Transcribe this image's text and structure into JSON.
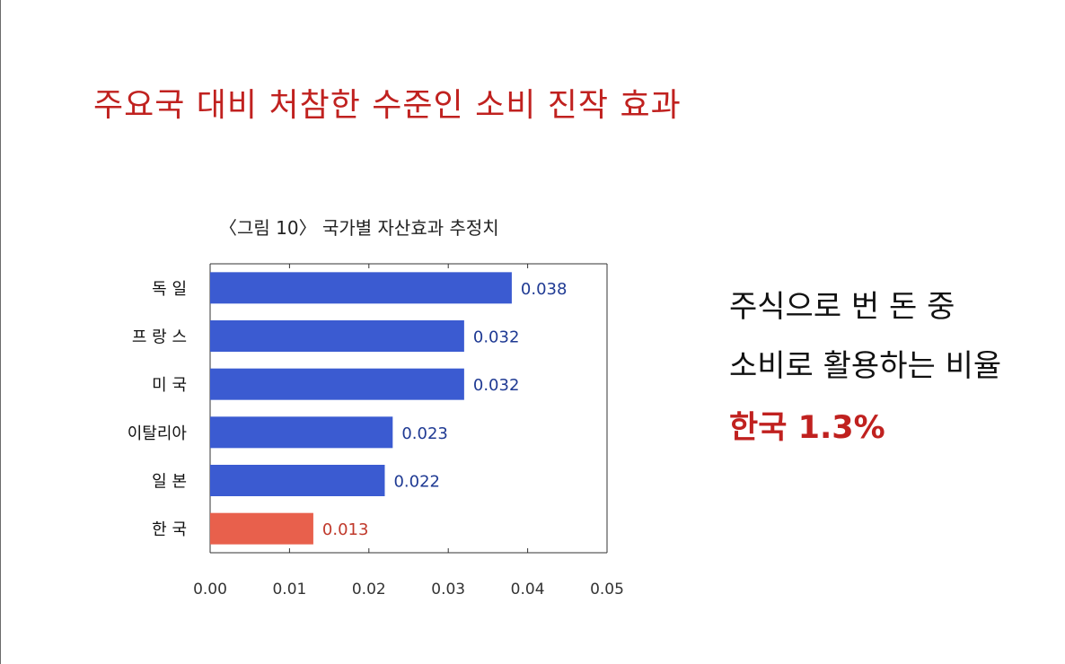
{
  "slide": {
    "title": "주요국 대비 처참한 수준인 소비 진작 효과",
    "note_line1": "주식으로 번 돈 중",
    "note_line2": "소비로 활용하는 비율",
    "note_line3": "한국 1.3%"
  },
  "colors": {
    "title_red": "#c0211f",
    "bar_blue": "#3b5bd1",
    "bar_highlight": "#e8604c",
    "value_blue": "#1f3a93",
    "value_red": "#c0392b"
  },
  "chart_data": {
    "type": "bar",
    "orientation": "horizontal",
    "title": "〈그림 10〉 국가별 자산효과 추정치",
    "categories": [
      "독    일",
      "프 랑 스",
      "미    국",
      "이탈리아",
      "일    본",
      "한    국"
    ],
    "values": [
      0.038,
      0.032,
      0.032,
      0.023,
      0.022,
      0.013
    ],
    "value_labels": [
      "0.038",
      "0.032",
      "0.032",
      "0.023",
      "0.022",
      "0.013"
    ],
    "highlight_index": 5,
    "xlim": [
      0,
      0.05
    ],
    "xticks": [
      0,
      0.01,
      0.02,
      0.03,
      0.04,
      0.05
    ],
    "xtick_labels": [
      "0.00",
      "0.01",
      "0.02",
      "0.03",
      "0.04",
      "0.05"
    ],
    "grid": false,
    "legend": "none"
  }
}
